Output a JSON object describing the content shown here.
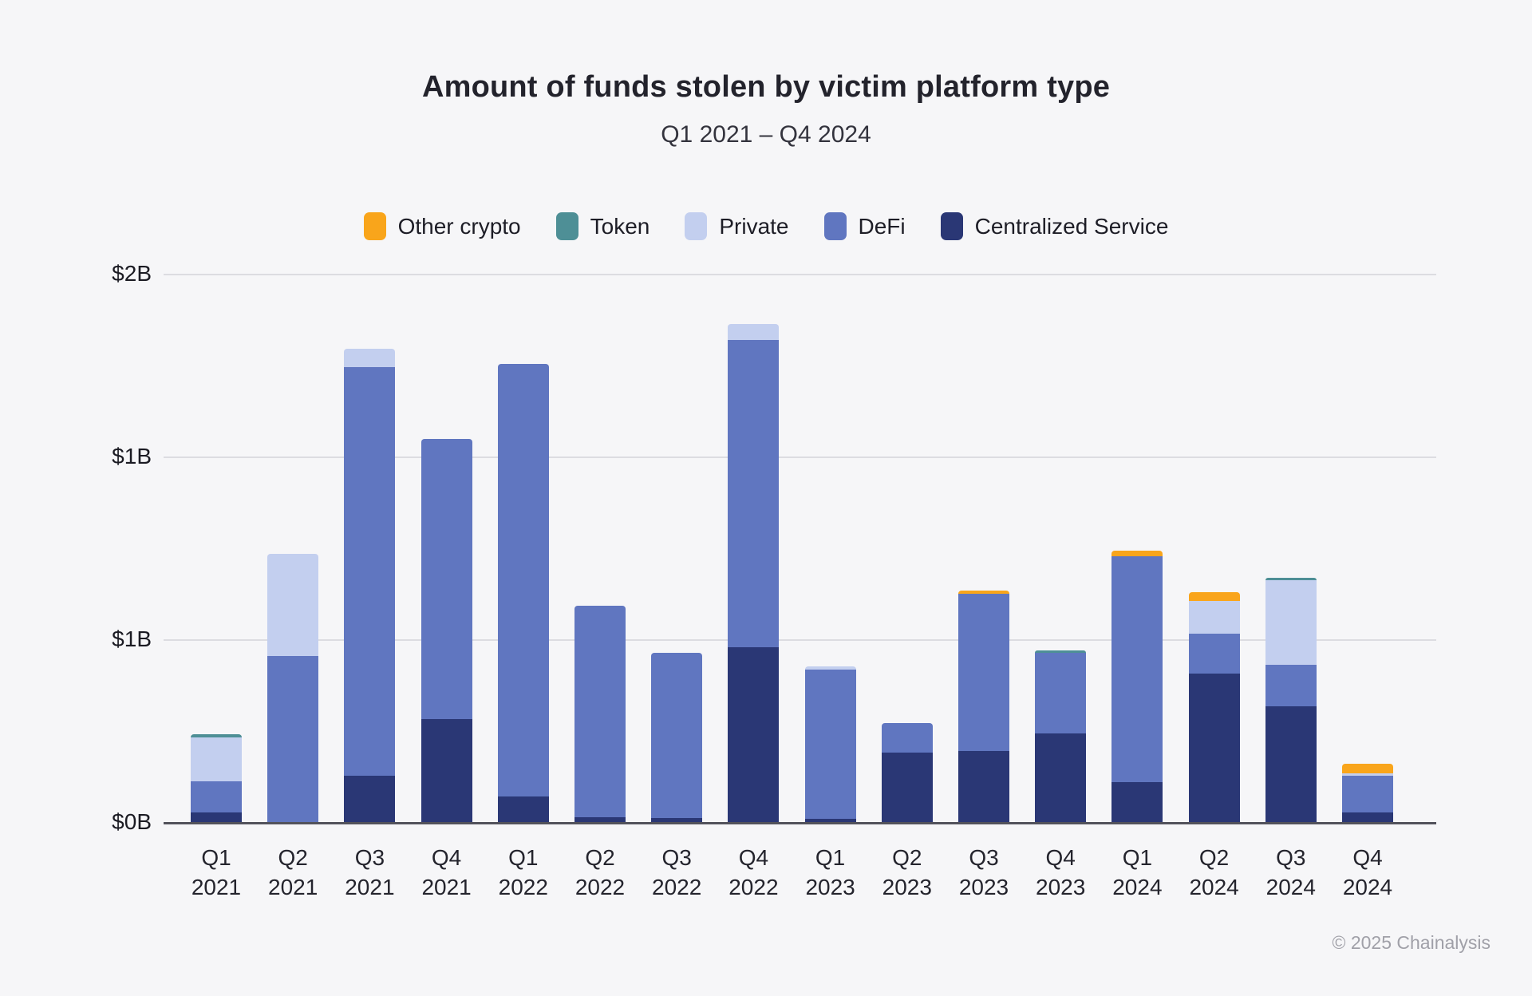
{
  "header": {
    "title": "Amount of funds stolen by victim platform type",
    "subtitle": "Q1 2021 – Q4 2024"
  },
  "footer": {
    "credit": "© 2025 Chainalysis"
  },
  "chart_data": {
    "type": "stacked_bar",
    "title": "Amount of funds stolen by victim platform type",
    "subtitle": "Q1 2021 – Q4 2024",
    "units": "USD billions",
    "grid": "horizontal",
    "legend_position": "top",
    "ylim": [
      0,
      2
    ],
    "y_ticks": [
      {
        "label": "$2B",
        "value": 2
      },
      {
        "label": "$1B",
        "value": 1.3333
      },
      {
        "label": "$1B",
        "value": 0.6667
      },
      {
        "label": "$0B",
        "value": 0
      }
    ],
    "categories": [
      {
        "quarter": "Q1",
        "year": "2021"
      },
      {
        "quarter": "Q2",
        "year": "2021"
      },
      {
        "quarter": "Q3",
        "year": "2021"
      },
      {
        "quarter": "Q4",
        "year": "2021"
      },
      {
        "quarter": "Q1",
        "year": "2022"
      },
      {
        "quarter": "Q2",
        "year": "2022"
      },
      {
        "quarter": "Q3",
        "year": "2022"
      },
      {
        "quarter": "Q4",
        "year": "2022"
      },
      {
        "quarter": "Q1",
        "year": "2023"
      },
      {
        "quarter": "Q2",
        "year": "2023"
      },
      {
        "quarter": "Q3",
        "year": "2023"
      },
      {
        "quarter": "Q4",
        "year": "2023"
      },
      {
        "quarter": "Q1",
        "year": "2024"
      },
      {
        "quarter": "Q2",
        "year": "2024"
      },
      {
        "quarter": "Q3",
        "year": "2024"
      },
      {
        "quarter": "Q4",
        "year": "2024"
      }
    ],
    "stack_order": "bottom_to_top",
    "series": [
      {
        "key": "centralized_service",
        "name": "Centralized Service",
        "color": "#2A3775",
        "values": [
          0.037,
          0,
          0.172,
          0.377,
          0.096,
          0.02,
          0.017,
          0.64,
          0.015,
          0.255,
          0.261,
          0.327,
          0.149,
          0.545,
          0.426,
          0.037
        ]
      },
      {
        "key": "defi",
        "name": "DeFi",
        "color": "#6076C0",
        "values": [
          0.114,
          0.608,
          1.49,
          1.022,
          1.578,
          0.771,
          0.603,
          1.12,
          0.545,
          0.109,
          0.574,
          0.293,
          0.824,
          0.145,
          0.149,
          0.136
        ]
      },
      {
        "key": "private",
        "name": "Private",
        "color": "#C3CFEF",
        "values": [
          0.161,
          0.372,
          0.066,
          0,
          0,
          0,
          0,
          0.059,
          0.01,
          0,
          0,
          0,
          0,
          0.118,
          0.309,
          0.007
        ]
      },
      {
        "key": "token",
        "name": "Token",
        "color": "#4E8F96",
        "values": [
          0.012,
          0,
          0,
          0,
          0,
          0,
          0,
          0,
          0,
          0,
          0,
          0.008,
          0,
          0,
          0.01,
          0
        ]
      },
      {
        "key": "other_crypto",
        "name": "Other crypto",
        "color": "#F9A51B",
        "values": [
          0,
          0,
          0,
          0,
          0,
          0,
          0,
          0,
          0,
          0,
          0.013,
          0,
          0.02,
          0.033,
          0,
          0.036
        ]
      }
    ]
  }
}
